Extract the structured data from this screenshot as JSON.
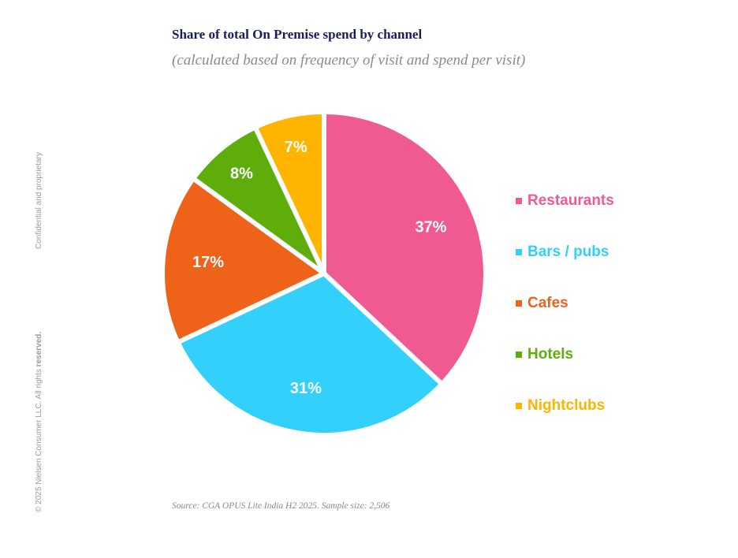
{
  "side": {
    "confidential": "Confidential and proprietary",
    "copyright": "© 2025 Nielsen Consumer LLC. All rights ",
    "copyright_bold": "reserved."
  },
  "source": "Source: CGA OPUS Lite India H2 2025. Sample size: 2,506",
  "chart_data": {
    "type": "pie",
    "title": "Share of total On Premise spend by channel",
    "subtitle": "(calculated based on frequency of visit and spend per visit)",
    "legend_position": "right",
    "categories": [
      "Restaurants",
      "Bars / pubs",
      "Cafes",
      "Hotels",
      "Nightclubs"
    ],
    "values": [
      37,
      31,
      17,
      8,
      7
    ],
    "labels": [
      "37%",
      "31%",
      "17%",
      "8%",
      "7%"
    ],
    "colors": [
      "#ef5a93",
      "#33d0fb",
      "#ee6219",
      "#5fad0b",
      "#ffb400"
    ],
    "label_colors": [
      "#ffffff",
      "#ffffff",
      "#ffffff",
      "#ffffff",
      "#ffffff"
    ]
  }
}
